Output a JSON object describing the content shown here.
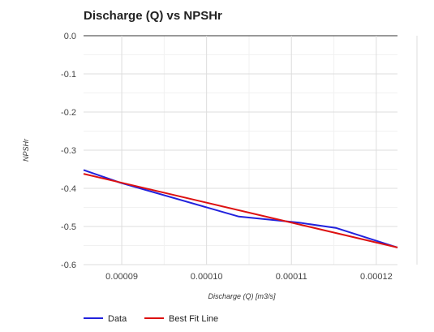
{
  "chart_data": {
    "type": "line",
    "title": "Discharge (Q) vs NPSHr",
    "xlabel": "Discharge (Q) [m3/s]",
    "ylabel": "NPSHr",
    "xlim": [
      8.55e-05,
      0.0001225
    ],
    "ylim": [
      -0.6,
      0.0
    ],
    "x_ticks": [
      9e-05,
      0.0001,
      0.00011,
      0.00012
    ],
    "x_tick_labels": [
      "0.00009",
      "0.00010",
      "0.00011",
      "0.00012"
    ],
    "y_ticks": [
      0.0,
      -0.1,
      -0.2,
      -0.3,
      -0.4,
      -0.5,
      -0.6
    ],
    "y_tick_labels": [
      "0.0",
      "-0.1",
      "-0.2",
      "-0.3",
      "-0.4",
      "-0.5",
      "-0.6"
    ],
    "grid": true,
    "legend_position": "bottom-left",
    "series": [
      {
        "name": "Data",
        "color": "#2222dd",
        "x": [
          8.55e-05,
          8.98e-05,
          0.0001038,
          0.0001109,
          0.0001153,
          0.0001225
        ],
        "y": [
          -0.352,
          -0.385,
          -0.474,
          -0.49,
          -0.504,
          -0.555
        ]
      },
      {
        "name": "Best Fit Line",
        "color": "#dd1111",
        "x": [
          8.55e-05,
          0.0001225
        ],
        "y": [
          -0.362,
          -0.555
        ]
      }
    ]
  }
}
